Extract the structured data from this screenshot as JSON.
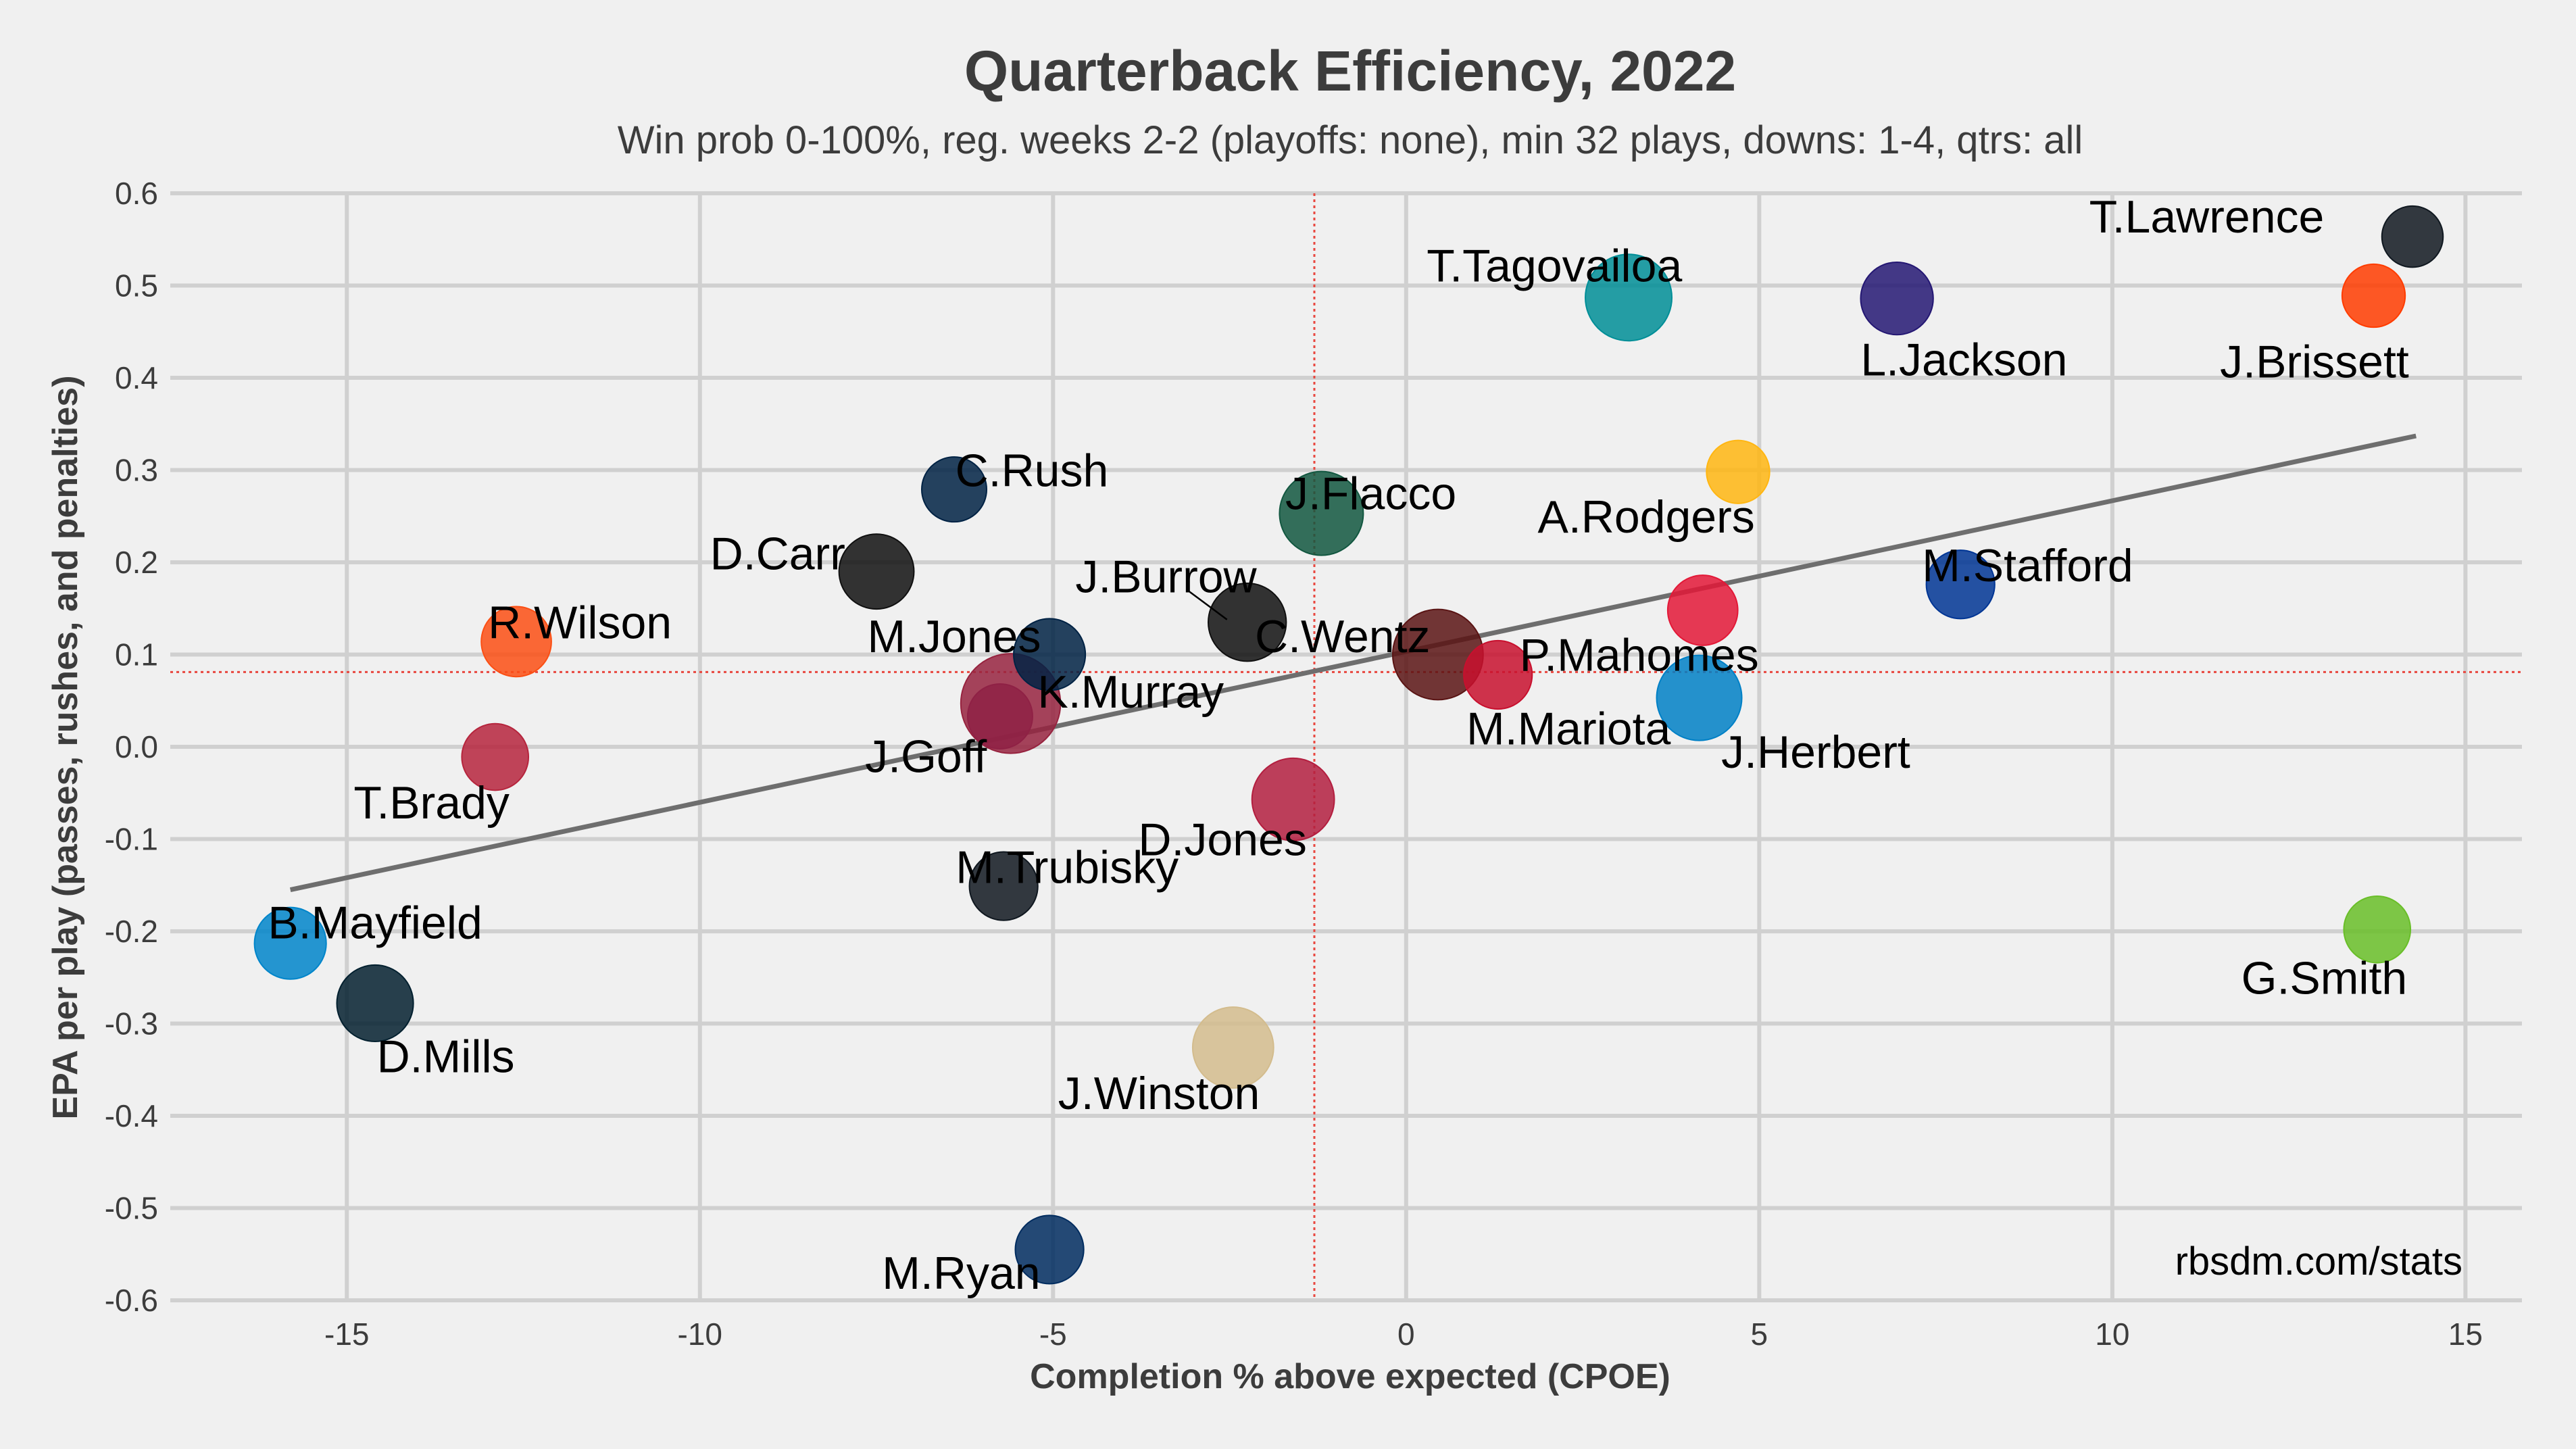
{
  "chart_data": {
    "type": "scatter",
    "title": "Quarterback Efficiency, 2022",
    "subtitle": "Win prob 0-100%, reg. weeks 2-2 (playoffs: none), min 32 plays, downs: 1-4, qtrs: all",
    "xlabel": "Completion % above expected (CPOE)",
    "ylabel": "EPA per play (passes, rushes, and penalties)",
    "xlim": [
      -17.5,
      15.8
    ],
    "ylim": [
      -0.6,
      0.6
    ],
    "xticks": [
      -15,
      -10,
      -5,
      0,
      5,
      10,
      15
    ],
    "yticks": [
      0.6,
      0.5,
      0.4,
      0.3,
      0.2,
      0.1,
      0.0,
      -0.1,
      -0.2,
      -0.3,
      -0.4,
      -0.5,
      -0.6
    ],
    "xtick_labels": [
      "-15",
      "-10",
      "-5",
      "0",
      "5",
      "10",
      "15"
    ],
    "ytick_labels": [
      "0.6",
      "0.5",
      "0.4",
      "0.3",
      "0.2",
      "0.1",
      "0.0",
      "-0.1",
      "-0.2",
      "-0.3",
      "-0.4",
      "-0.5",
      "-0.6"
    ],
    "mean_x": -1.3,
    "mean_y": 0.081,
    "trendline": {
      "x": [
        -15.8,
        14.3
      ],
      "y": [
        -0.155,
        0.337
      ]
    },
    "credit": "rbsdm.com/stats",
    "points": [
      {
        "name": "T.Lawrence",
        "x": 14.25,
        "y": 0.553,
        "plays": 32,
        "color": "#101820",
        "label_anchor": "end",
        "label_x": 13.0,
        "label_y": 0.575
      },
      {
        "name": "J.Brissett",
        "x": 13.7,
        "y": 0.489,
        "plays": 34,
        "color": "#ff3c00",
        "label_anchor": "end",
        "label_x": 14.2,
        "label_y": 0.418
      },
      {
        "name": "L.Jackson",
        "x": 6.95,
        "y": 0.486,
        "plays": 45,
        "color": "#241773",
        "label_anchor": "middle",
        "label_x": 7.9,
        "label_y": 0.42
      },
      {
        "name": "T.Tagovailoa",
        "x": 3.15,
        "y": 0.487,
        "plays": 64,
        "color": "#008e97",
        "label_anchor": "middle",
        "label_x": 2.1,
        "label_y": 0.522
      },
      {
        "name": "A.Rodgers",
        "x": 4.7,
        "y": 0.298,
        "plays": 34,
        "color": "#ffb612",
        "label_anchor": "middle",
        "label_x": 3.4,
        "label_y": 0.25
      },
      {
        "name": "J.Flacco",
        "x": -1.2,
        "y": 0.253,
        "plays": 60,
        "color": "#125740",
        "label_anchor": "middle",
        "label_x": -0.5,
        "label_y": 0.275
      },
      {
        "name": "C.Rush",
        "x": -6.4,
        "y": 0.279,
        "plays": 36,
        "color": "#002244",
        "label_anchor": "middle",
        "label_x": -5.3,
        "label_y": 0.3
      },
      {
        "name": "D.Carr",
        "x": -7.5,
        "y": 0.19,
        "plays": 48,
        "color": "#101010",
        "label_anchor": "middle",
        "label_x": -8.9,
        "label_y": 0.21
      },
      {
        "name": "M.Stafford",
        "x": 7.85,
        "y": 0.176,
        "plays": 40,
        "color": "#003594",
        "label_anchor": "middle",
        "label_x": 8.8,
        "label_y": 0.197
      },
      {
        "name": "J.Burrow",
        "x": -2.25,
        "y": 0.135,
        "plays": 52,
        "color": "#101010",
        "label_anchor": "middle",
        "label_x": -3.4,
        "label_y": 0.185
      },
      {
        "name": "R.Wilson",
        "x": -12.6,
        "y": 0.114,
        "plays": 42,
        "color": "#fb4f14",
        "label_anchor": "middle",
        "label_x": -11.7,
        "label_y": 0.135
      },
      {
        "name": "M.Jones",
        "x": -5.05,
        "y": 0.1,
        "plays": 44,
        "color": "#002244",
        "label_anchor": "middle",
        "label_x": -6.4,
        "label_y": 0.12
      },
      {
        "name": "C.Wentz",
        "x": 0.45,
        "y": 0.1,
        "plays": 70,
        "color": "#5a1414",
        "label_anchor": "middle",
        "label_x": -0.9,
        "label_y": 0.12
      },
      {
        "name": "P.Mahomes",
        "x": 4.2,
        "y": 0.148,
        "plays": 42,
        "color": "#e31837",
        "label_anchor": "middle",
        "label_x": 3.3,
        "label_y": 0.1
      },
      {
        "name": "M.Mariota",
        "x": 1.3,
        "y": 0.078,
        "plays": 40,
        "color": "#c8102e",
        "label_anchor": "middle",
        "label_x": 2.3,
        "label_y": 0.02
      },
      {
        "name": "J.Herbert",
        "x": 4.15,
        "y": 0.053,
        "plays": 62,
        "color": "#0080c6",
        "label_anchor": "middle",
        "label_x": 5.8,
        "label_y": -0.005
      },
      {
        "name": "K.Murray",
        "x": -5.6,
        "y": 0.047,
        "plays": 85,
        "color": "#97233f",
        "label_anchor": "middle",
        "label_x": -3.9,
        "label_y": 0.06
      },
      {
        "name": "J.Goff",
        "x": -5.75,
        "y": 0.033,
        "plays": 36,
        "color": "#8f2145",
        "label_anchor": "middle",
        "label_x": -6.8,
        "label_y": -0.01
      },
      {
        "name": "T.Brady",
        "x": -12.9,
        "y": -0.011,
        "plays": 38,
        "color": "#b6253d",
        "label_anchor": "middle",
        "label_x": -13.8,
        "label_y": -0.06
      },
      {
        "name": "D.Jones",
        "x": -1.6,
        "y": -0.057,
        "plays": 58,
        "color": "#b31e3f",
        "label_anchor": "middle",
        "label_x": -2.6,
        "label_y": -0.1
      },
      {
        "name": "M.Trubisky",
        "x": -5.7,
        "y": -0.151,
        "plays": 40,
        "color": "#101820",
        "label_anchor": "middle",
        "label_x": -4.8,
        "label_y": -0.13
      },
      {
        "name": "B.Mayfield",
        "x": -15.8,
        "y": -0.213,
        "plays": 44,
        "color": "#0085ca",
        "label_anchor": "middle",
        "label_x": -14.6,
        "label_y": -0.19
      },
      {
        "name": "G.Smith",
        "x": 13.75,
        "y": -0.198,
        "plays": 38,
        "color": "#69be28",
        "label_anchor": "middle",
        "label_x": 13.0,
        "label_y": -0.25
      },
      {
        "name": "D.Mills",
        "x": -14.6,
        "y": -0.278,
        "plays": 50,
        "color": "#03202f",
        "label_anchor": "middle",
        "label_x": -13.6,
        "label_y": -0.335
      },
      {
        "name": "J.Winston",
        "x": -2.45,
        "y": -0.326,
        "plays": 56,
        "color": "#d3bc8d",
        "label_anchor": "middle",
        "label_x": -3.5,
        "label_y": -0.375
      },
      {
        "name": "M.Ryan",
        "x": -5.05,
        "y": -0.545,
        "plays": 40,
        "color": "#002c5f",
        "label_anchor": "middle",
        "label_x": -6.3,
        "label_y": -0.57
      }
    ]
  }
}
